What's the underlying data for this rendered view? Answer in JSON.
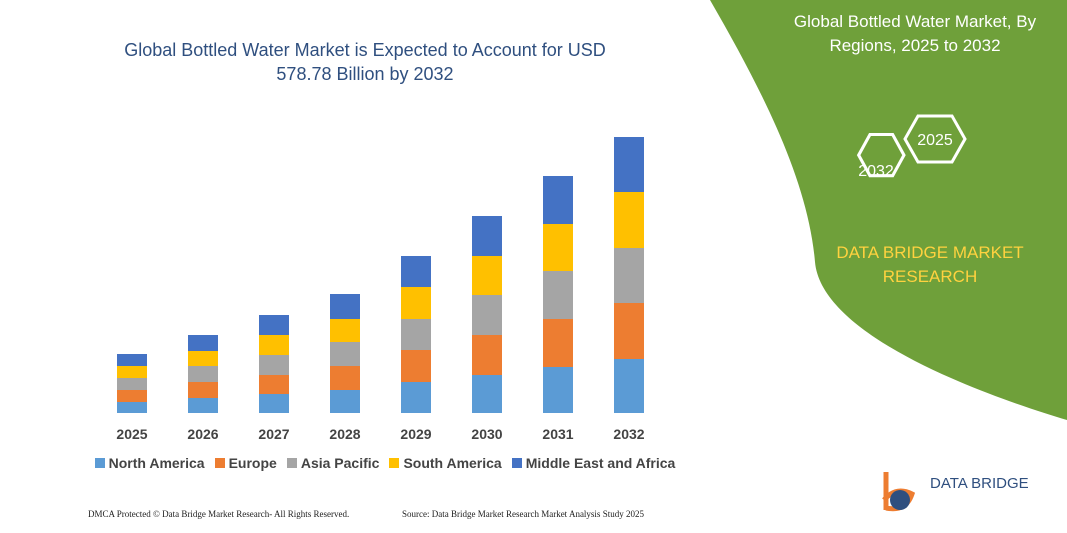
{
  "chart_data": {
    "type": "bar",
    "stacked": true,
    "title": "Global Bottled Water Market is Expected to Account for USD 578.78 Billion by 2032",
    "categories": [
      "2025",
      "2026",
      "2027",
      "2028",
      "2029",
      "2030",
      "2031",
      "2032"
    ],
    "series": [
      {
        "name": "North America",
        "color": "#5b9bd5",
        "values": [
          11,
          15,
          19,
          23,
          31,
          38,
          46,
          54
        ]
      },
      {
        "name": "Europe",
        "color": "#ed7d31",
        "values": [
          12,
          16,
          19,
          24,
          32,
          40,
          48,
          56
        ]
      },
      {
        "name": "Asia Pacific",
        "color": "#a5a5a5",
        "values": [
          12,
          16,
          20,
          24,
          31,
          40,
          48,
          55
        ]
      },
      {
        "name": "South America",
        "color": "#ffc000",
        "values": [
          12,
          15,
          20,
          23,
          32,
          39,
          47,
          56
        ]
      },
      {
        "name": "Middle East and Africa",
        "color": "#4472c4",
        "values": [
          12,
          16,
          20,
          25,
          31,
          40,
          48,
          55
        ]
      }
    ],
    "ylim": [
      0,
      280
    ]
  },
  "panel": {
    "title": "Global Bottled Water Market, By Regions, 2025 to 2032",
    "hex_left": "2032",
    "hex_right": "2025",
    "brand": "DATA BRIDGE MARKET RESEARCH"
  },
  "logo": {
    "text": "DATA BRIDGE"
  },
  "footer": {
    "left": "DMCA Protected © Data Bridge Market Research- All Rights Reserved.",
    "right": "Source: Data Bridge Market Research Market Analysis Study 2025"
  }
}
